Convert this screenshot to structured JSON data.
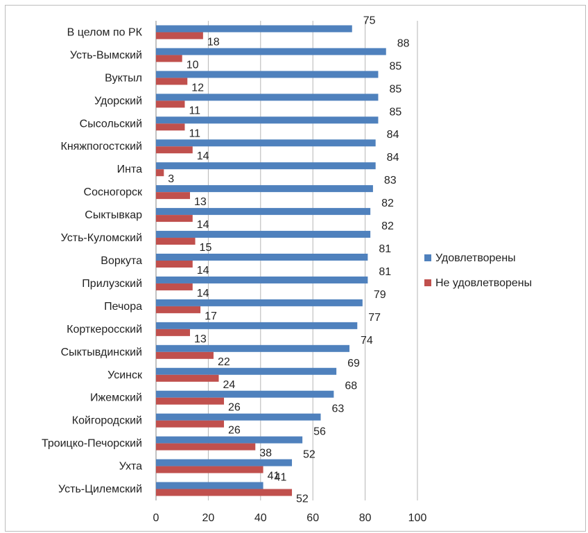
{
  "chart_data": {
    "type": "bar",
    "orientation": "horizontal",
    "categories": [
      "В целом по РК",
      "Усть-Вымский",
      "Вуктыл",
      "Удорский",
      "Сысольский",
      "Княжпогостский",
      "Инта",
      "Сосногорск",
      "Сыктывкар",
      "Усть-Куломский",
      "Воркута",
      "Прилузский",
      "Печора",
      "Корткеросский",
      "Сыктывдинский",
      "Усинск",
      "Ижемский",
      "Койгородский",
      "Троицко-Печорский",
      "Ухта",
      "Усть-Цилемский"
    ],
    "series": [
      {
        "name": "Удовлетворены",
        "color": "#4f81bd",
        "values": [
          75,
          88,
          85,
          85,
          85,
          84,
          84,
          83,
          82,
          82,
          81,
          81,
          79,
          77,
          74,
          69,
          68,
          63,
          56,
          52,
          41
        ]
      },
      {
        "name": "Не удовлетворены",
        "color": "#c0504d",
        "values": [
          18,
          10,
          12,
          11,
          11,
          14,
          3,
          13,
          14,
          15,
          14,
          14,
          17,
          13,
          22,
          24,
          26,
          26,
          38,
          41,
          52
        ]
      }
    ],
    "xlim": [
      0,
      100
    ],
    "xticks": [
      0,
      20,
      40,
      60,
      80,
      100
    ],
    "grid": "vertical",
    "legend_position": "right",
    "title": "",
    "xlabel": "",
    "ylabel": ""
  }
}
